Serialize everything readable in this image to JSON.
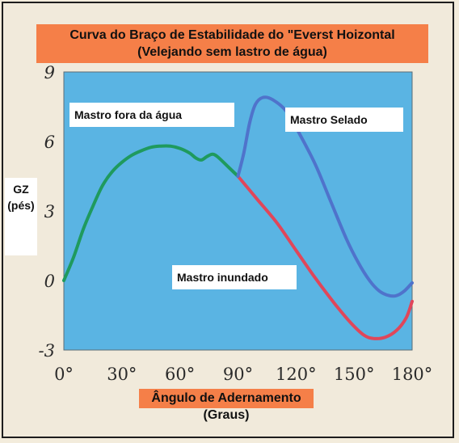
{
  "chart_data": {
    "type": "line",
    "title": "Curva do Braço de Estabilidade do \"Everst Hoizontal",
    "subtitle": "(Velejando sem lastro de água)",
    "ylabel_line1": "GZ",
    "ylabel_line2": "(pés)",
    "xlabel": "Ângulo de Adernamento",
    "xlabel_sub": "(Graus)",
    "xlim": [
      0,
      180
    ],
    "ylim": [
      -3,
      9
    ],
    "x_ticks": [
      0,
      30,
      60,
      90,
      120,
      150,
      180
    ],
    "x_tick_labels": [
      "0°",
      "30°",
      "60°",
      "90°",
      "120°",
      "150°",
      "180°"
    ],
    "y_ticks": [
      -3,
      0,
      3,
      6,
      9
    ],
    "y_tick_labels": [
      "-3",
      "0",
      "3",
      "6",
      "9"
    ],
    "plot_background": "#5ab4e3",
    "series": [
      {
        "name": "Mastro fora da água",
        "color": "#1f9a5e",
        "points": [
          [
            0,
            0
          ],
          [
            5,
            1.0
          ],
          [
            10,
            2.2
          ],
          [
            15,
            3.2
          ],
          [
            20,
            4.1
          ],
          [
            25,
            4.7
          ],
          [
            30,
            5.1
          ],
          [
            35,
            5.4
          ],
          [
            40,
            5.6
          ],
          [
            45,
            5.75
          ],
          [
            50,
            5.8
          ],
          [
            55,
            5.8
          ],
          [
            60,
            5.7
          ],
          [
            65,
            5.5
          ],
          [
            68,
            5.3
          ],
          [
            71,
            5.2
          ],
          [
            74,
            5.35
          ],
          [
            77,
            5.45
          ],
          [
            80,
            5.3
          ],
          [
            85,
            4.9
          ],
          [
            90,
            4.5
          ]
        ]
      },
      {
        "name": "Mastro Selado",
        "color": "#4f73cb",
        "points": [
          [
            90,
            4.5
          ],
          [
            93,
            5.5
          ],
          [
            96,
            6.8
          ],
          [
            99,
            7.6
          ],
          [
            103,
            7.9
          ],
          [
            108,
            7.8
          ],
          [
            115,
            7.3
          ],
          [
            122,
            6.3
          ],
          [
            130,
            5.0
          ],
          [
            138,
            3.4
          ],
          [
            146,
            1.8
          ],
          [
            152,
            0.8
          ],
          [
            158,
            0.0
          ],
          [
            163,
            -0.45
          ],
          [
            168,
            -0.65
          ],
          [
            172,
            -0.65
          ],
          [
            176,
            -0.45
          ],
          [
            180,
            -0.1
          ]
        ]
      },
      {
        "name": "Mastro inundado",
        "color": "#e0465a",
        "points": [
          [
            90,
            4.5
          ],
          [
            100,
            3.5
          ],
          [
            110,
            2.5
          ],
          [
            120,
            1.3
          ],
          [
            130,
            0.1
          ],
          [
            140,
            -1.0
          ],
          [
            148,
            -1.8
          ],
          [
            155,
            -2.35
          ],
          [
            160,
            -2.5
          ],
          [
            166,
            -2.45
          ],
          [
            172,
            -2.15
          ],
          [
            177,
            -1.6
          ],
          [
            180,
            -0.9
          ]
        ]
      }
    ],
    "annotations": {
      "fora": "Mastro fora da água",
      "selado": "Mastro Selado",
      "inundado": "Mastro inundado"
    }
  }
}
